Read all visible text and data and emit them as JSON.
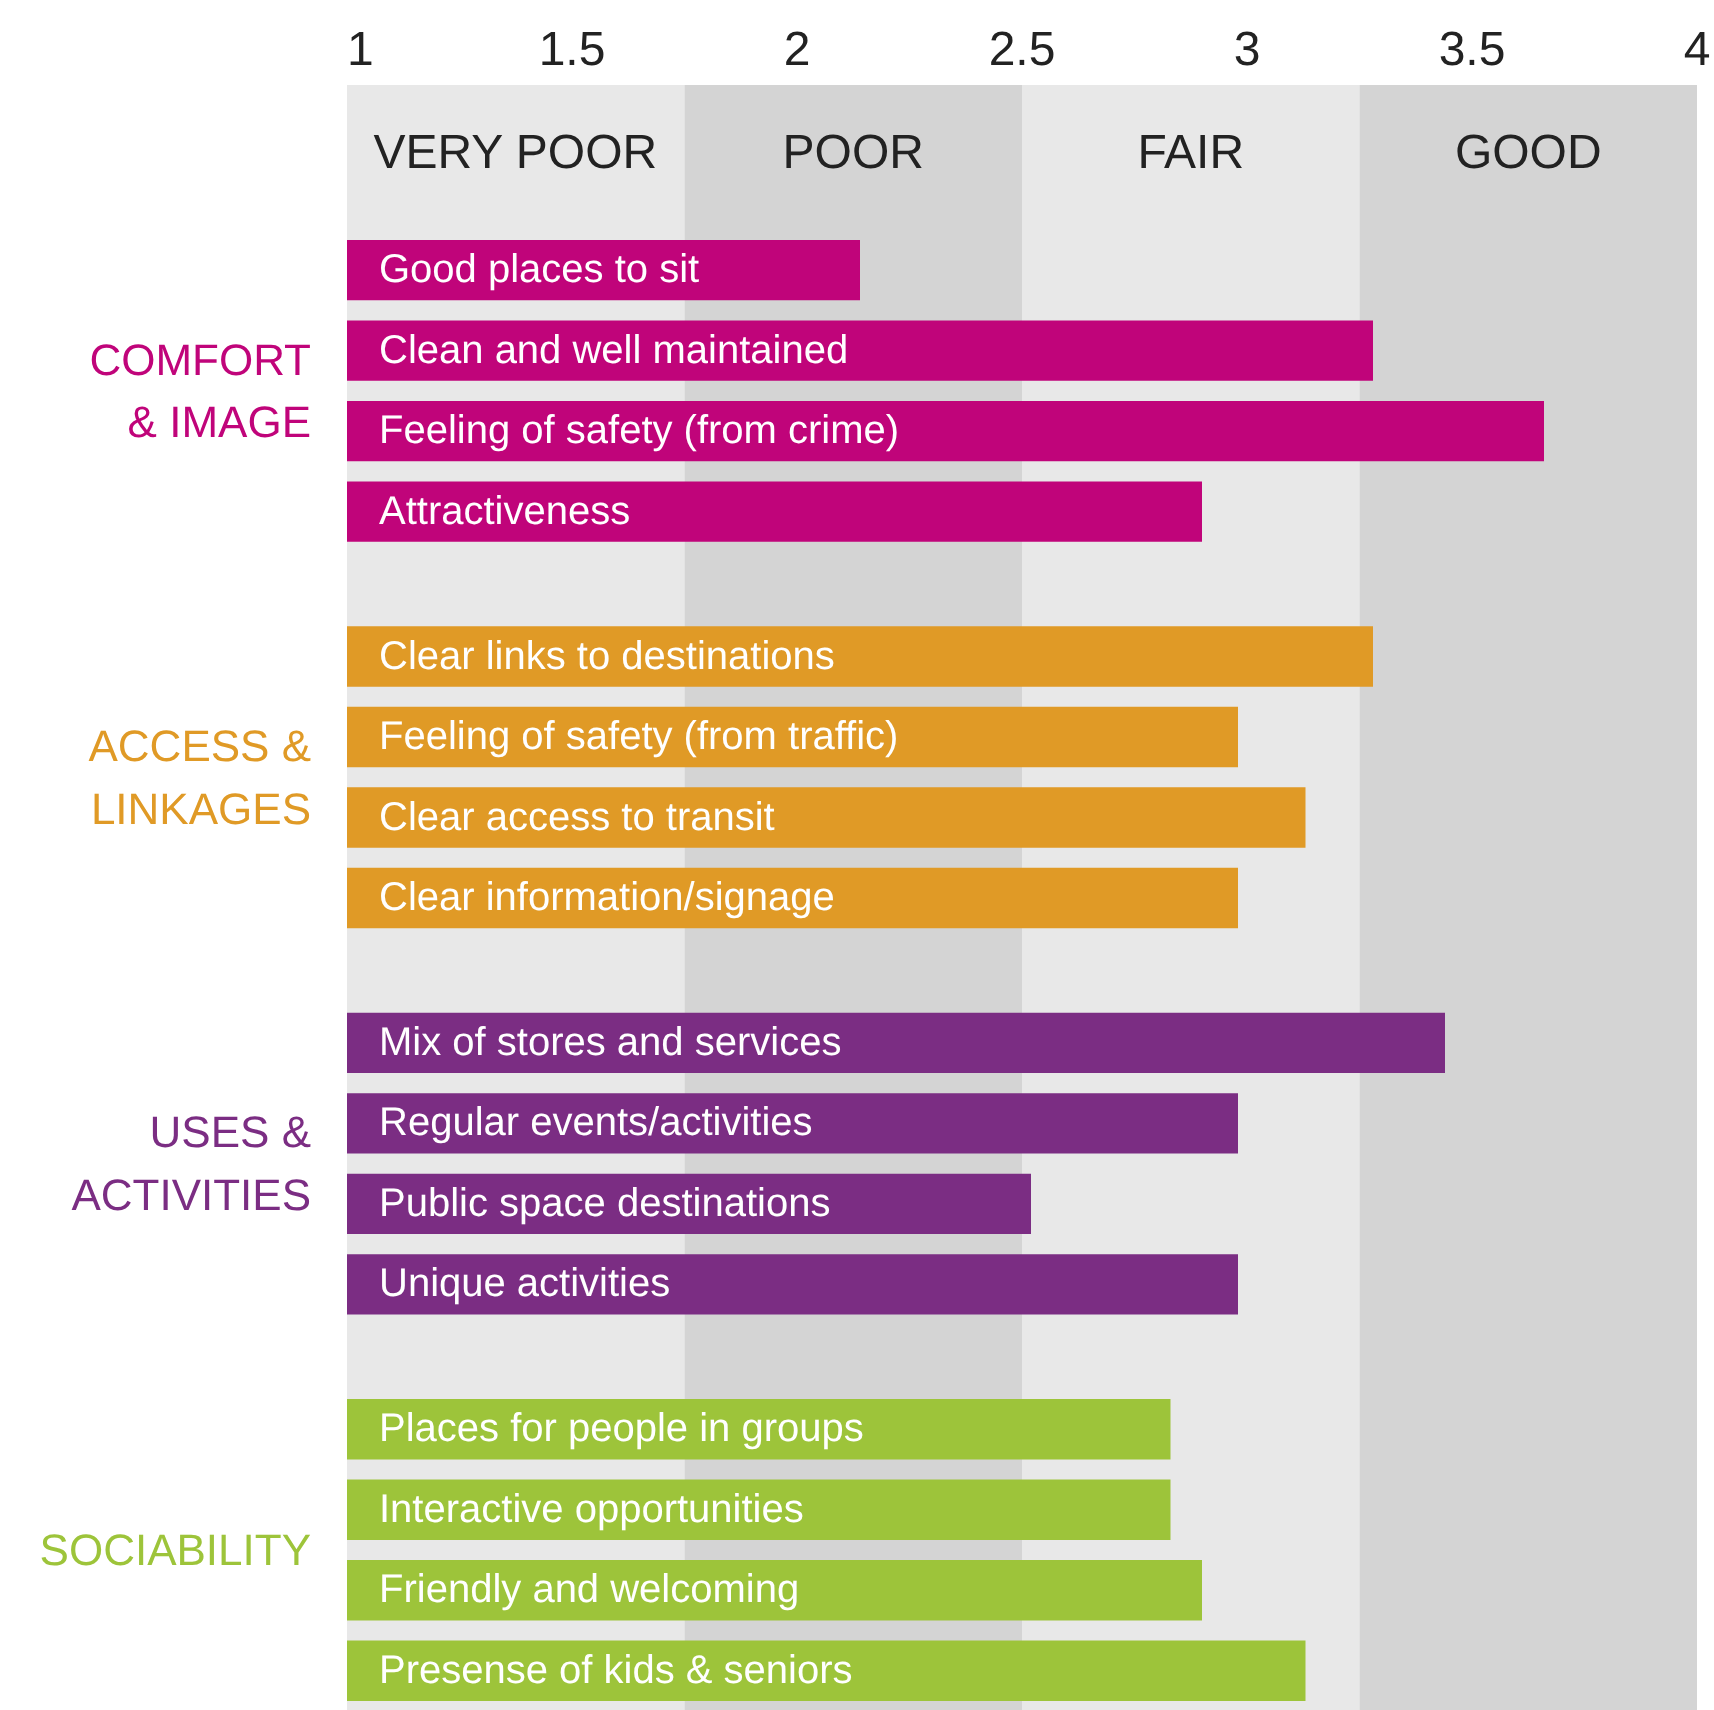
{
  "chart_data": {
    "type": "bar",
    "orientation": "horizontal",
    "categories": [
      "Good places to sit",
      "Clean and well maintained",
      "Feeling of safety (from crime)",
      "Attractiveness",
      "Clear links to destinations",
      "Feeling of safety (from traffic)",
      "Clear access to transit",
      "Clear information/signage",
      "Mix of stores and services",
      "Regular events/activities",
      "Public space destinations",
      "Unique activities",
      "Places for people in groups",
      "Interactive opportunities",
      "Friendly and welcoming",
      "Presense of kids & seniors"
    ],
    "series": [
      {
        "name": "COMFORT\n& IMAGE",
        "color": "#c0047a",
        "values": [
          2.14,
          3.28,
          3.66,
          2.9,
          null,
          null,
          null,
          null,
          null,
          null,
          null,
          null,
          null,
          null,
          null,
          null
        ]
      },
      {
        "name": "ACCESS &\nLINKAGES",
        "color": "#e09a26",
        "values": [
          null,
          null,
          null,
          null,
          3.28,
          2.98,
          3.13,
          2.98,
          null,
          null,
          null,
          null,
          null,
          null,
          null,
          null
        ]
      },
      {
        "name": "USES &\nACTIVITIES",
        "color": "#7b2d83",
        "values": [
          null,
          null,
          null,
          null,
          null,
          null,
          null,
          null,
          3.44,
          2.98,
          2.52,
          2.98,
          null,
          null,
          null,
          null
        ]
      },
      {
        "name": "SOCIABILITY",
        "color": "#9dc43a",
        "values": [
          null,
          null,
          null,
          null,
          null,
          null,
          null,
          null,
          null,
          null,
          null,
          null,
          2.83,
          2.83,
          2.9,
          3.13
        ]
      }
    ],
    "xlim": [
      1,
      4
    ],
    "xticks": [
      1,
      1.5,
      2,
      2.5,
      3,
      3.5,
      4
    ],
    "bands": [
      {
        "axis": "x",
        "from": 1,
        "to": 1.75,
        "label": "VERY POOR",
        "color": "#e8e8e8"
      },
      {
        "axis": "x",
        "from": 1.75,
        "to": 2.5,
        "label": "POOR",
        "color": "#d4d4d4"
      },
      {
        "axis": "x",
        "from": 2.5,
        "to": 3.25,
        "label": "FAIR",
        "color": "#e8e8e8"
      },
      {
        "axis": "x",
        "from": 3.25,
        "to": 4,
        "label": "GOOD",
        "color": "#d4d4d4"
      }
    ],
    "grid": false
  }
}
